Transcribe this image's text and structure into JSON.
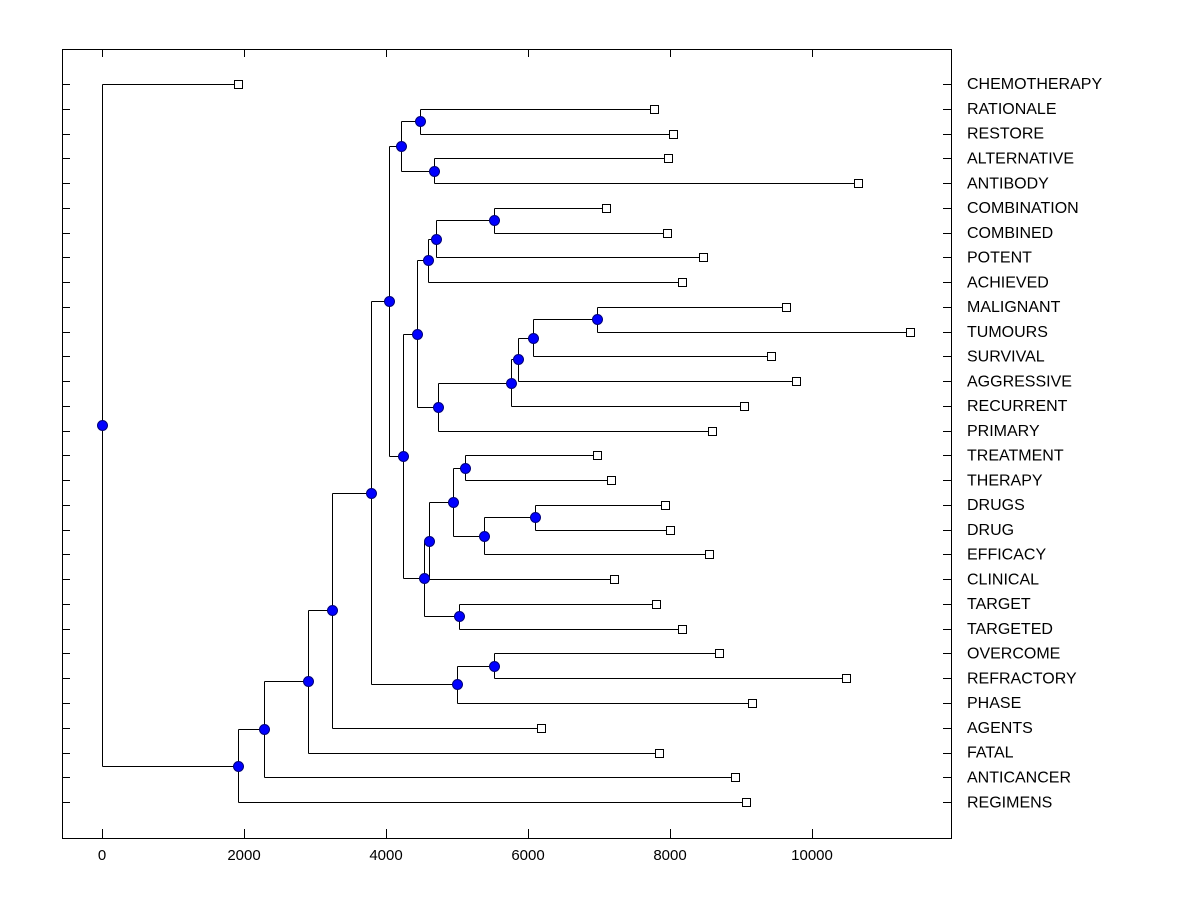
{
  "chart_data": {
    "type": "dendrogram",
    "title": "",
    "xlabel": "",
    "ylabel": "",
    "orientation": "horizontal",
    "xlim": [
      -560,
      11950
    ],
    "xticks": [
      0,
      2000,
      4000,
      6000,
      8000,
      10000
    ],
    "xtick_labels": [
      "0",
      "2000",
      "4000",
      "6000",
      "8000",
      "10000"
    ],
    "grid": false,
    "leaf_order": [
      "CHEMOTHERAPY",
      "RATIONALE",
      "RESTORE",
      "ALTERNATIVE",
      "ANTIBODY",
      "COMBINATION",
      "COMBINED",
      "POTENT",
      "ACHIEVED",
      "MALIGNANT",
      "TUMOURS",
      "SURVIVAL",
      "AGGRESSIVE",
      "RECURRENT",
      "PRIMARY",
      "TREATMENT",
      "THERAPY",
      "DRUGS",
      "DRUG",
      "EFFICACY",
      "CLINICAL",
      "TARGET",
      "TARGETED",
      "OVERCOME",
      "REFRACTORY",
      "PHASE",
      "AGENTS",
      "FATAL",
      "ANTICANCER",
      "REGIMENS"
    ],
    "leaf_values": {
      "CHEMOTHERAPY": 1915,
      "RATIONALE": 7775,
      "RESTORE": 8042,
      "ALTERNATIVE": 7972,
      "ANTIBODY": 10648,
      "COMBINATION": 7099,
      "COMBINED": 7958,
      "POTENT": 8465,
      "ACHIEVED": 8169,
      "MALIGNANT": 9634,
      "TUMOURS": 11380,
      "SURVIVAL": 9423,
      "AGGRESSIVE": 9775,
      "RECURRENT": 9042,
      "PRIMARY": 8592,
      "TREATMENT": 6972,
      "THERAPY": 7169,
      "DRUGS": 7930,
      "DRUG": 8000,
      "EFFICACY": 8549,
      "CLINICAL": 7211,
      "TARGET": 7803,
      "TARGETED": 8169,
      "OVERCOME": 8690,
      "REFRACTORY": 10479,
      "PHASE": 9155,
      "AGENTS": 6183,
      "FATAL": 7845,
      "ANTICANCER": 8915,
      "REGIMENS": 9070
    },
    "merges": [
      {
        "id": "n1",
        "value": 4479,
        "children": [
          "RATIONALE",
          "RESTORE"
        ]
      },
      {
        "id": "n2",
        "value": 4676,
        "children": [
          "ALTERNATIVE",
          "ANTIBODY"
        ]
      },
      {
        "id": "n3",
        "value": 4211,
        "children": [
          "n1",
          "n2"
        ]
      },
      {
        "id": "n4",
        "value": 5521,
        "children": [
          "COMBINATION",
          "COMBINED"
        ]
      },
      {
        "id": "n5",
        "value": 4704,
        "children": [
          "n4",
          "POTENT"
        ]
      },
      {
        "id": "n6",
        "value": 4592,
        "children": [
          "n5",
          "ACHIEVED"
        ]
      },
      {
        "id": "n7",
        "value": 6972,
        "children": [
          "MALIGNANT",
          "TUMOURS"
        ]
      },
      {
        "id": "n8",
        "value": 6070,
        "children": [
          "n7",
          "SURVIVAL"
        ]
      },
      {
        "id": "n9",
        "value": 5859,
        "children": [
          "n8",
          "AGGRESSIVE"
        ]
      },
      {
        "id": "n10",
        "value": 5761,
        "children": [
          "n9",
          "RECURRENT"
        ]
      },
      {
        "id": "n11",
        "value": 4732,
        "children": [
          "n10",
          "PRIMARY"
        ]
      },
      {
        "id": "n12",
        "value": 4437,
        "children": [
          "n6",
          "n11"
        ]
      },
      {
        "id": "n13",
        "value": 5113,
        "children": [
          "TREATMENT",
          "THERAPY"
        ]
      },
      {
        "id": "n14",
        "value": 6099,
        "children": [
          "DRUGS",
          "DRUG"
        ]
      },
      {
        "id": "n15",
        "value": 5380,
        "children": [
          "n14",
          "EFFICACY"
        ]
      },
      {
        "id": "n16",
        "value": 4944,
        "children": [
          "n13",
          "n15"
        ]
      },
      {
        "id": "n17",
        "value": 4606,
        "children": [
          "n16",
          "CLINICAL"
        ]
      },
      {
        "id": "n18",
        "value": 5028,
        "children": [
          "TARGET",
          "TARGETED"
        ]
      },
      {
        "id": "n19",
        "value": 4535,
        "children": [
          "n17",
          "n18"
        ]
      },
      {
        "id": "n20",
        "value": 4239,
        "children": [
          "n12",
          "n19"
        ]
      },
      {
        "id": "n21",
        "value": 4042,
        "children": [
          "n3",
          "n20"
        ]
      },
      {
        "id": "n22",
        "value": 5521,
        "children": [
          "OVERCOME",
          "REFRACTORY"
        ]
      },
      {
        "id": "n23",
        "value": 5000,
        "children": [
          "n22",
          "PHASE"
        ]
      },
      {
        "id": "n24",
        "value": 3789,
        "children": [
          "n21",
          "n23"
        ]
      },
      {
        "id": "n25",
        "value": 3239,
        "children": [
          "n24",
          "AGENTS"
        ]
      },
      {
        "id": "n26",
        "value": 2901,
        "children": [
          "n25",
          "FATAL"
        ]
      },
      {
        "id": "n27",
        "value": 2282,
        "children": [
          "n26",
          "ANTICANCER"
        ]
      },
      {
        "id": "n28",
        "value": 1915,
        "children": [
          "n27",
          "REGIMENS"
        ]
      },
      {
        "id": "root",
        "value": 0,
        "children": [
          "CHEMOTHERAPY",
          "n28"
        ]
      }
    ],
    "colors": {
      "internal_node": "#0000ff",
      "leaf_marker": "#ffffff",
      "lines": "#000000"
    }
  }
}
